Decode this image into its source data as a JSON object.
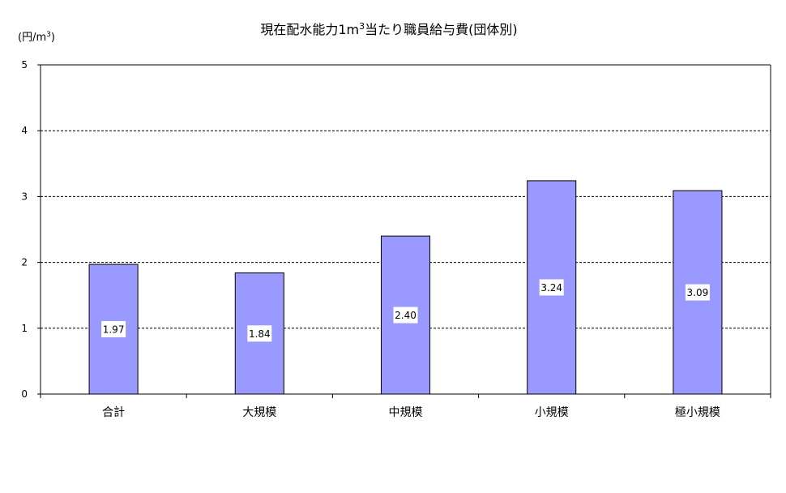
{
  "chart_data": {
    "type": "bar",
    "title": "現在配水能力1m",
    "title_superscript": "3",
    "title_suffix": "当たり職員給与費(団体別)",
    "ylabel": "(円/m",
    "ylabel_superscript": "3",
    "ylabel_suffix": ")",
    "xlabel": "",
    "categories": [
      "合計",
      "大規模",
      "中規模",
      "小規模",
      "極小規模"
    ],
    "values": [
      1.97,
      1.84,
      2.4,
      3.24,
      3.09
    ],
    "data_labels": [
      "1.97",
      "1.84",
      "2.40",
      "3.24",
      "3.09"
    ],
    "ylim": [
      0,
      5
    ],
    "yticks": [
      0,
      1,
      2,
      3,
      4,
      5
    ],
    "grid": true,
    "grid_style": "dashed",
    "bar_color": "#9999ff",
    "bar_edge_color": "#000000",
    "legend": "none"
  }
}
